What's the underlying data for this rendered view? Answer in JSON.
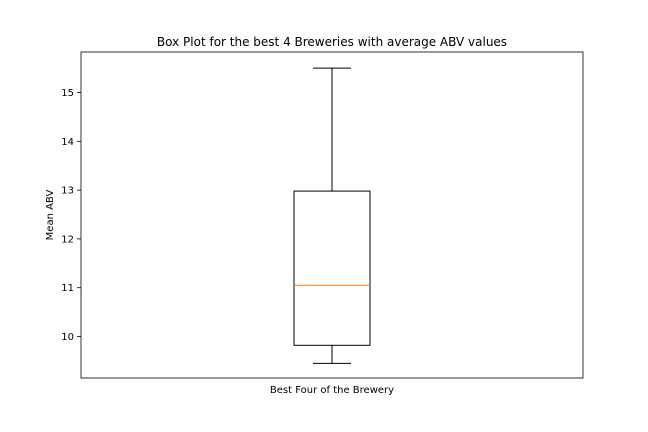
{
  "chart_data": {
    "type": "box",
    "title": "Box Plot for the best 4 Breweries with average ABV values",
    "xlabel": "Best Four of the Brewery",
    "ylabel": "Mean ABV",
    "ylim": [
      9.15,
      15.83
    ],
    "yticks": [
      10,
      11,
      12,
      13,
      14,
      15
    ],
    "grid": false,
    "colors": {
      "box": "#000000",
      "median": "#ff7f0e",
      "whisker": "#000000"
    },
    "series": [
      {
        "whisker_low": 9.45,
        "q1": 9.82,
        "median": 11.05,
        "q3": 12.98,
        "whisker_high": 15.5
      }
    ]
  }
}
